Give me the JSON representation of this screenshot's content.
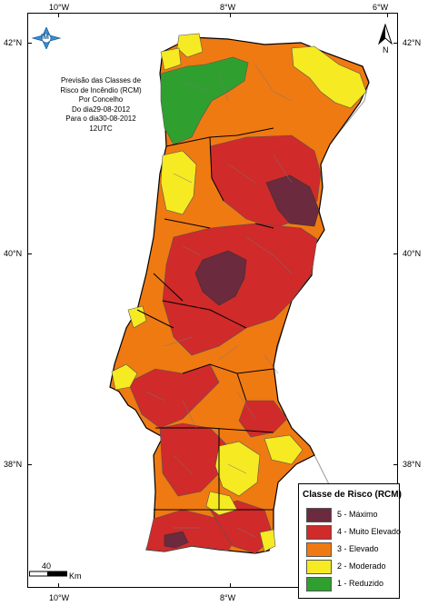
{
  "info": {
    "line1": "Previsão das Classes de",
    "line2": "Risco de Incêndio (RCM)",
    "line3": "Por Concelho",
    "line4": "Do dia29-08-2012",
    "line5": "Para o dia30-08-2012",
    "line6": "12UTC"
  },
  "axes": {
    "top": [
      "10°W",
      "8°W",
      "6°W"
    ],
    "bottom": [
      "10°W",
      "8°W"
    ],
    "left": [
      "42°N",
      "40°N",
      "38°N"
    ],
    "right": [
      "42°N",
      "40°N",
      "38°N"
    ]
  },
  "legend": {
    "title": "Classe de Risco (RCM)",
    "items": [
      {
        "label": "5 - Máximo",
        "color": "#6b2a3d"
      },
      {
        "label": "4 - Muito Elevado",
        "color": "#d02a2a"
      },
      {
        "label": "3 - Elevado",
        "color": "#ef7a12"
      },
      {
        "label": "2 - Moderado",
        "color": "#f6ea22"
      },
      {
        "label": "1 - Reduzido",
        "color": "#2fa02f"
      }
    ]
  },
  "scale": {
    "value": "40",
    "unit": "Km"
  },
  "north": {
    "letter": "N"
  },
  "logo": {
    "text": "IM"
  }
}
